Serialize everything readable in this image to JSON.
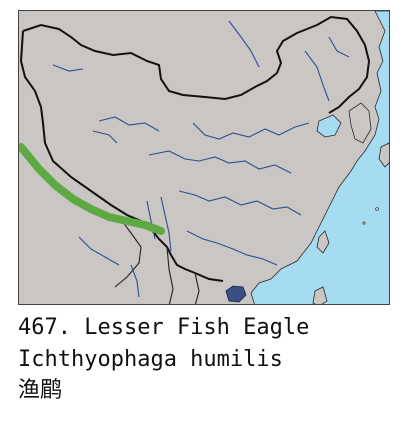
{
  "species": {
    "number_line": "467. Lesser Fish Eagle",
    "scientific_name": "Ichthyophaga humilis",
    "chinese_name": "渔鹛"
  },
  "map": {
    "colors": {
      "land": "#c9c6c3",
      "sea": "#a6dcf2",
      "border": "#111111",
      "rivers": "#2f4f8f",
      "range_mainland": "#5ea944",
      "range_hainan": "#3b4f86"
    },
    "legend_marks": [
      "range-band",
      "hainan-range"
    ]
  }
}
